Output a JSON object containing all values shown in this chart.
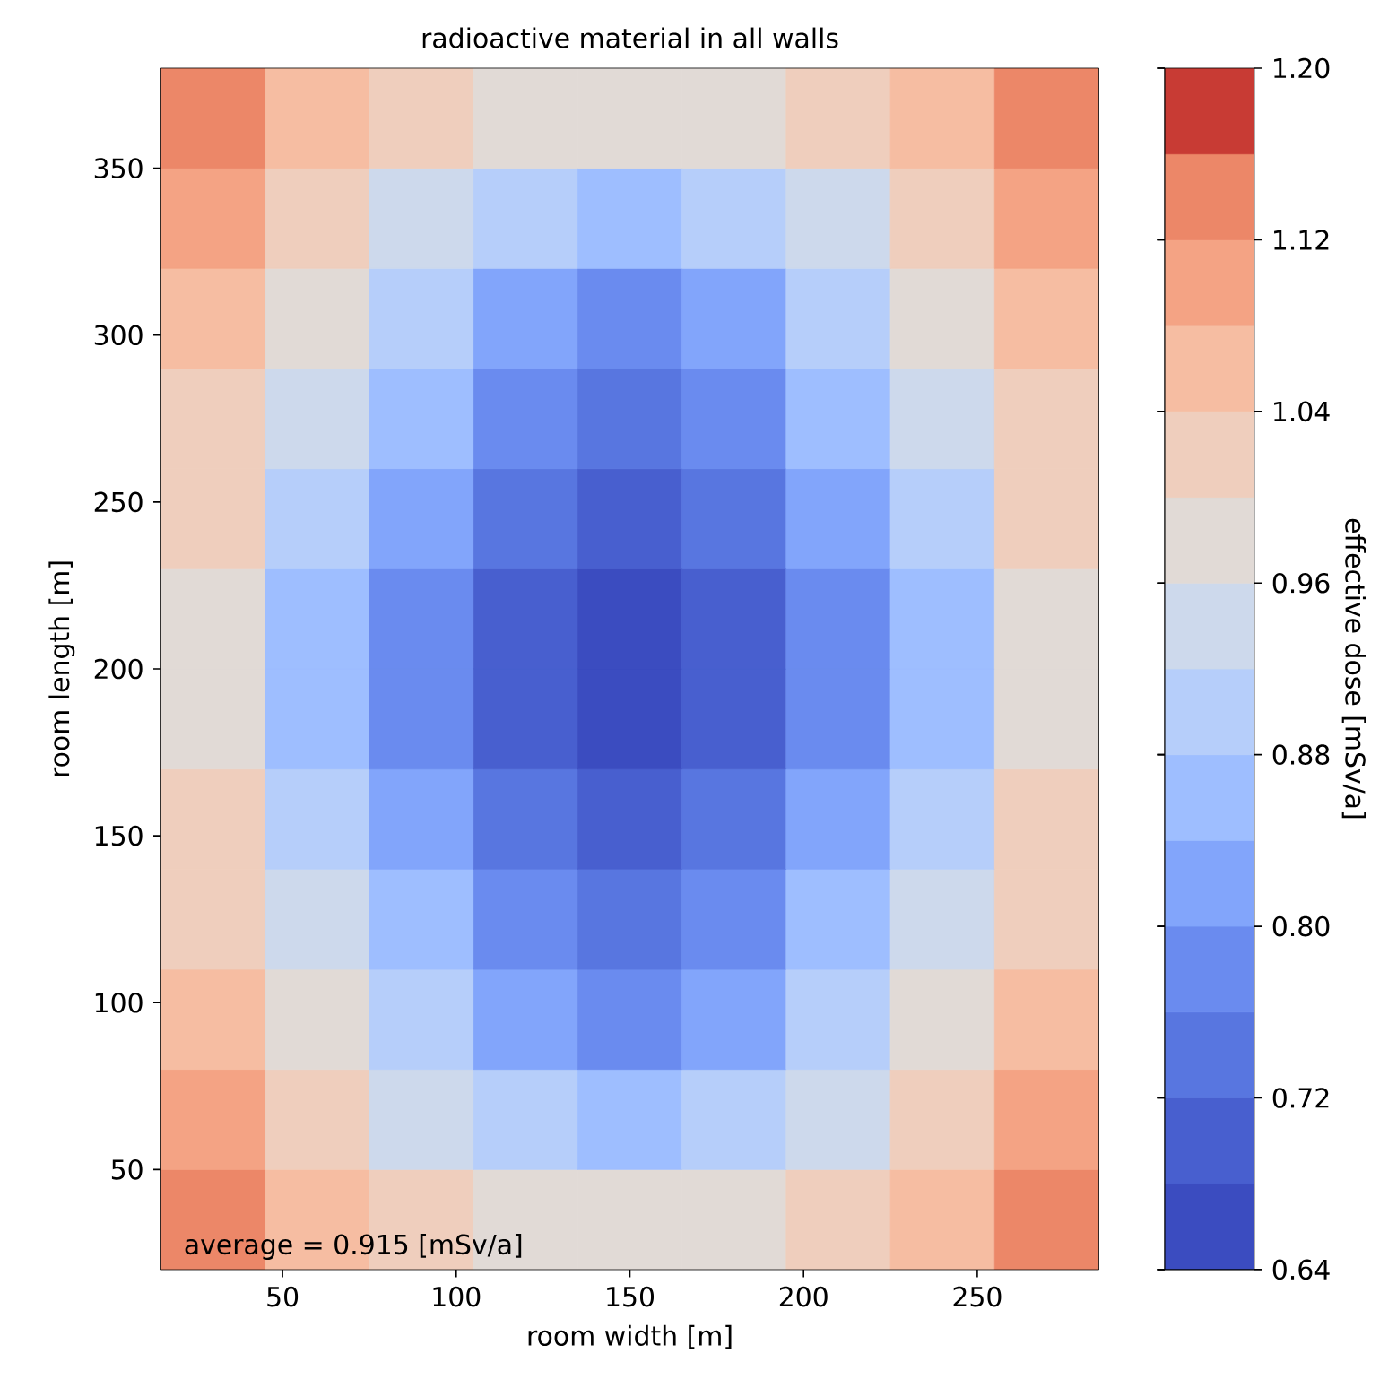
{
  "chart_data": {
    "type": "heatmap",
    "title": "radioactive material in all walls",
    "xlabel": "room width [m]",
    "ylabel": "room length [m]",
    "clabel": "effective dose [mSv/a]",
    "xlim": [
      15,
      285
    ],
    "ylim": [
      20,
      380
    ],
    "xticks": [
      50,
      100,
      150,
      200,
      250
    ],
    "yticks": [
      50,
      100,
      150,
      200,
      250,
      300,
      350
    ],
    "clim": [
      0.64,
      1.2
    ],
    "cticks": [
      0.64,
      0.72,
      {
        "value": 0.8,
        "label": "0.80"
      },
      0.88,
      0.96,
      1.04,
      1.12,
      {
        "value": 1.2,
        "label": "1.20"
      }
    ],
    "cells": [
      [
        1.12,
        1.06,
        1.02,
        0.98,
        0.96,
        0.98,
        1.02,
        1.06,
        1.12
      ],
      [
        1.08,
        1.02,
        0.94,
        0.9,
        0.86,
        0.9,
        0.94,
        1.02,
        1.08
      ],
      [
        1.04,
        0.98,
        0.9,
        0.82,
        0.78,
        0.82,
        0.9,
        0.98,
        1.04
      ],
      [
        1.02,
        0.94,
        0.86,
        0.78,
        0.74,
        0.78,
        0.86,
        0.94,
        1.02
      ],
      [
        1.0,
        0.9,
        0.82,
        0.74,
        0.7,
        0.74,
        0.82,
        0.9,
        1.0
      ],
      [
        0.98,
        0.86,
        0.78,
        0.7,
        0.66,
        0.7,
        0.78,
        0.86,
        0.98
      ],
      [
        0.98,
        0.86,
        0.78,
        0.7,
        0.66,
        0.7,
        0.78,
        0.86,
        0.98
      ],
      [
        1.0,
        0.9,
        0.82,
        0.74,
        0.7,
        0.74,
        0.82,
        0.9,
        1.0
      ],
      [
        1.02,
        0.94,
        0.86,
        0.78,
        0.74,
        0.78,
        0.86,
        0.94,
        1.02
      ],
      [
        1.04,
        0.98,
        0.9,
        0.82,
        0.78,
        0.82,
        0.9,
        0.98,
        1.04
      ],
      [
        1.08,
        1.02,
        0.94,
        0.9,
        0.86,
        0.9,
        0.94,
        1.02,
        1.08
      ],
      [
        1.12,
        1.06,
        1.02,
        0.98,
        0.96,
        0.98,
        1.02,
        1.06,
        1.12
      ]
    ],
    "annotations": [
      "average = 0.915 [mSv/a]"
    ]
  }
}
